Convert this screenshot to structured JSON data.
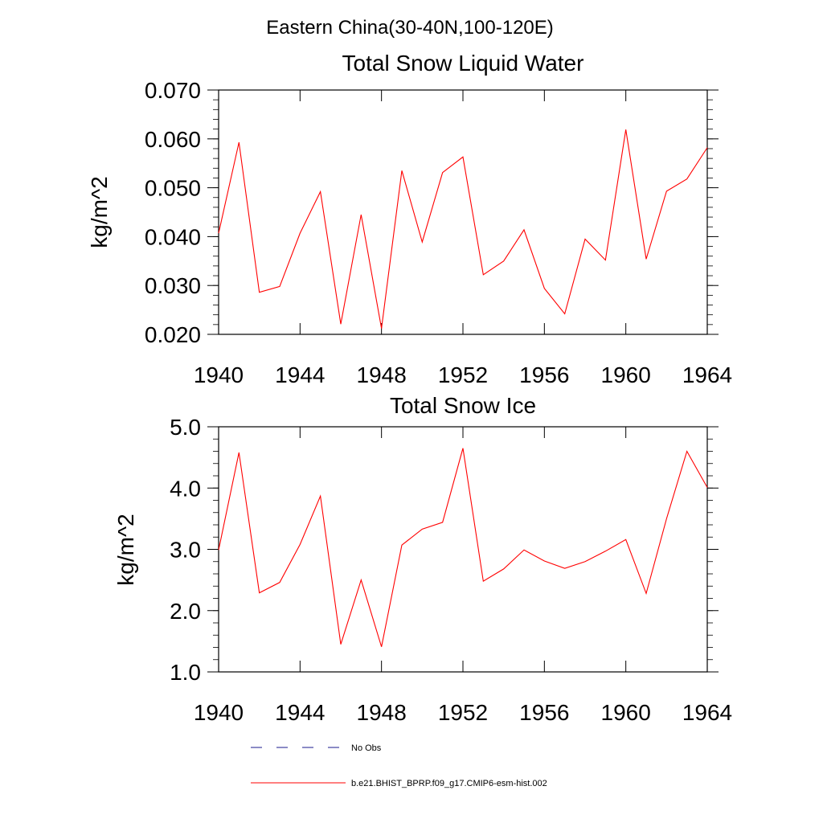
{
  "figure_title": "Eastern China(30-40N,100-120E)",
  "chart_data": [
    {
      "type": "line",
      "title": "Total Snow Liquid Water",
      "xlabel": "",
      "ylabel": "kg/m^2",
      "xlim": [
        1940,
        1964
      ],
      "ylim": [
        0.02,
        0.07
      ],
      "x_ticks": [
        "1940",
        "1944",
        "1948",
        "1952",
        "1956",
        "1960",
        "1964"
      ],
      "y_ticks": [
        "0.020",
        "0.030",
        "0.040",
        "0.050",
        "0.060",
        "0.070"
      ],
      "series": [
        {
          "name": "b.e21.BHIST_BPRP.f09_g17.CMIP6-esm-hist.002",
          "color": "#ff0000",
          "x": [
            1940,
            1941,
            1942,
            1943,
            1944,
            1945,
            1946,
            1947,
            1948,
            1949,
            1950,
            1951,
            1952,
            1953,
            1954,
            1955,
            1956,
            1957,
            1958,
            1959,
            1960,
            1961,
            1962,
            1963,
            1964
          ],
          "values": [
            0.0407,
            0.0593,
            0.0286,
            0.0298,
            0.0407,
            0.0492,
            0.0221,
            0.0445,
            0.0212,
            0.0535,
            0.0389,
            0.0531,
            0.0563,
            0.0322,
            0.035,
            0.0414,
            0.0294,
            0.0242,
            0.0395,
            0.0352,
            0.0619,
            0.0354,
            0.0493,
            0.0518,
            0.0582
          ]
        }
      ]
    },
    {
      "type": "line",
      "title": "Total Snow Ice",
      "xlabel": "",
      "ylabel": "kg/m^2",
      "xlim": [
        1940,
        1964
      ],
      "ylim": [
        1.0,
        5.0
      ],
      "x_ticks": [
        "1940",
        "1944",
        "1948",
        "1952",
        "1956",
        "1960",
        "1964"
      ],
      "y_ticks": [
        "1.0",
        "2.0",
        "3.0",
        "4.0",
        "5.0"
      ],
      "series": [
        {
          "name": "b.e21.BHIST_BPRP.f09_g17.CMIP6-esm-hist.002",
          "color": "#ff0000",
          "x": [
            1940,
            1941,
            1942,
            1943,
            1944,
            1945,
            1946,
            1947,
            1948,
            1949,
            1950,
            1951,
            1952,
            1953,
            1954,
            1955,
            1956,
            1957,
            1958,
            1959,
            1960,
            1961,
            1962,
            1963,
            1964
          ],
          "values": [
            2.99,
            4.58,
            2.29,
            2.46,
            3.08,
            3.87,
            1.45,
            2.5,
            1.41,
            3.07,
            3.33,
            3.44,
            4.65,
            2.48,
            2.68,
            2.99,
            2.81,
            2.69,
            2.8,
            2.97,
            3.16,
            2.28,
            3.5,
            4.6,
            4.01
          ]
        }
      ]
    }
  ],
  "legend": {
    "placement": "bottom",
    "items": [
      {
        "label": "No Obs",
        "color": "#1a1a8c",
        "style": "dashed"
      },
      {
        "label": "b.e21.BHIST_BPRP.f09_g17.CMIP6-esm-hist.002",
        "color": "#ff0000",
        "style": "solid"
      }
    ]
  }
}
